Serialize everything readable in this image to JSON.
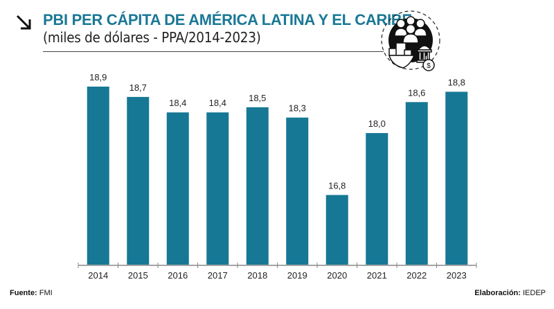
{
  "header": {
    "title": "PBI PER CÁPITA DE AMÉRICA LATINA Y EL CARIBE",
    "subtitle": "(miles de dólares - PPA/2014-2023)",
    "arrow_icon": "arrow-down-right-icon",
    "emblem_icon": "economy-people-bank-dollar-icon"
  },
  "footer": {
    "source_label": "Fuente:",
    "source_value": "FMI",
    "credit_label": "Elaboración:",
    "credit_value": "IEDEP"
  },
  "colors": {
    "accent": "#1a7896",
    "bar": "#167894",
    "axis": "#888888"
  },
  "chart_data": {
    "type": "bar",
    "title": "PBI PER CÁPITA DE AMÉRICA LATINA Y EL CARIBE",
    "subtitle": "(miles de dólares - PPA/2014-2023)",
    "xlabel": "",
    "ylabel": "",
    "categories": [
      "2014",
      "2015",
      "2016",
      "2017",
      "2018",
      "2019",
      "2020",
      "2021",
      "2022",
      "2023"
    ],
    "values": [
      18.9,
      18.7,
      18.4,
      18.4,
      18.5,
      18.3,
      16.8,
      18.0,
      18.6,
      18.8
    ],
    "value_labels": [
      "18,9",
      "18,7",
      "18,4",
      "18,4",
      "18,5",
      "18,3",
      "16,8",
      "18,0",
      "18,6",
      "18,8"
    ],
    "ylim": [
      15.45,
      19.0
    ],
    "grid": false,
    "legend": "none"
  }
}
